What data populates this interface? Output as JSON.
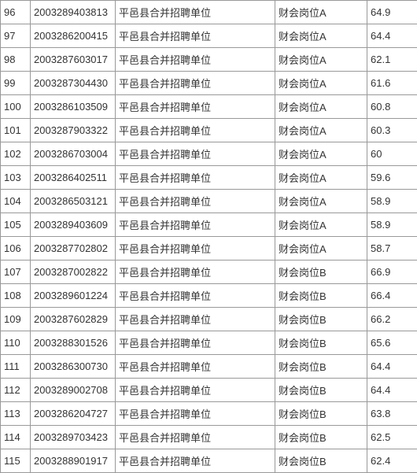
{
  "table": {
    "columns": [
      {
        "key": "idx",
        "class": "col-idx"
      },
      {
        "key": "id",
        "class": "col-id"
      },
      {
        "key": "unit",
        "class": "col-unit"
      },
      {
        "key": "pos",
        "class": "col-pos"
      },
      {
        "key": "score",
        "class": "col-score"
      }
    ],
    "rows": [
      {
        "idx": "96",
        "id": "2003289403813",
        "unit": "平邑县合并招聘单位",
        "pos": "财会岗位A",
        "score": "64.9"
      },
      {
        "idx": "97",
        "id": "2003286200415",
        "unit": "平邑县合并招聘单位",
        "pos": "财会岗位A",
        "score": "64.4"
      },
      {
        "idx": "98",
        "id": "2003287603017",
        "unit": "平邑县合并招聘单位",
        "pos": "财会岗位A",
        "score": "62.1"
      },
      {
        "idx": "99",
        "id": "2003287304430",
        "unit": "平邑县合并招聘单位",
        "pos": "财会岗位A",
        "score": "61.6"
      },
      {
        "idx": "100",
        "id": "2003286103509",
        "unit": "平邑县合并招聘单位",
        "pos": "财会岗位A",
        "score": "60.8"
      },
      {
        "idx": "101",
        "id": "2003287903322",
        "unit": "平邑县合并招聘单位",
        "pos": "财会岗位A",
        "score": "60.3"
      },
      {
        "idx": "102",
        "id": "2003286703004",
        "unit": "平邑县合并招聘单位",
        "pos": "财会岗位A",
        "score": "60"
      },
      {
        "idx": "103",
        "id": "2003286402511",
        "unit": "平邑县合并招聘单位",
        "pos": "财会岗位A",
        "score": "59.6"
      },
      {
        "idx": "104",
        "id": "2003286503121",
        "unit": "平邑县合并招聘单位",
        "pos": "财会岗位A",
        "score": "58.9"
      },
      {
        "idx": "105",
        "id": "2003289403609",
        "unit": "平邑县合并招聘单位",
        "pos": "财会岗位A",
        "score": "58.9"
      },
      {
        "idx": "106",
        "id": "2003287702802",
        "unit": "平邑县合并招聘单位",
        "pos": "财会岗位A",
        "score": "58.7"
      },
      {
        "idx": "107",
        "id": "2003287002822",
        "unit": "平邑县合并招聘单位",
        "pos": "财会岗位B",
        "score": "66.9"
      },
      {
        "idx": "108",
        "id": "2003289601224",
        "unit": "平邑县合并招聘单位",
        "pos": "财会岗位B",
        "score": "66.4"
      },
      {
        "idx": "109",
        "id": "2003287602829",
        "unit": "平邑县合并招聘单位",
        "pos": "财会岗位B",
        "score": "66.2"
      },
      {
        "idx": "110",
        "id": "2003288301526",
        "unit": "平邑县合并招聘单位",
        "pos": "财会岗位B",
        "score": "65.6"
      },
      {
        "idx": "111",
        "id": "2003286300730",
        "unit": "平邑县合并招聘单位",
        "pos": "财会岗位B",
        "score": "64.4"
      },
      {
        "idx": "112",
        "id": "2003289002708",
        "unit": "平邑县合并招聘单位",
        "pos": "财会岗位B",
        "score": "64.4"
      },
      {
        "idx": "113",
        "id": "2003286204727",
        "unit": "平邑县合并招聘单位",
        "pos": "财会岗位B",
        "score": "63.8"
      },
      {
        "idx": "114",
        "id": "2003289703423",
        "unit": "平邑县合并招聘单位",
        "pos": "财会岗位B",
        "score": "62.5"
      },
      {
        "idx": "115",
        "id": "2003288901917",
        "unit": "平邑县合并招聘单位",
        "pos": "财会岗位B",
        "score": "62.4"
      }
    ]
  }
}
